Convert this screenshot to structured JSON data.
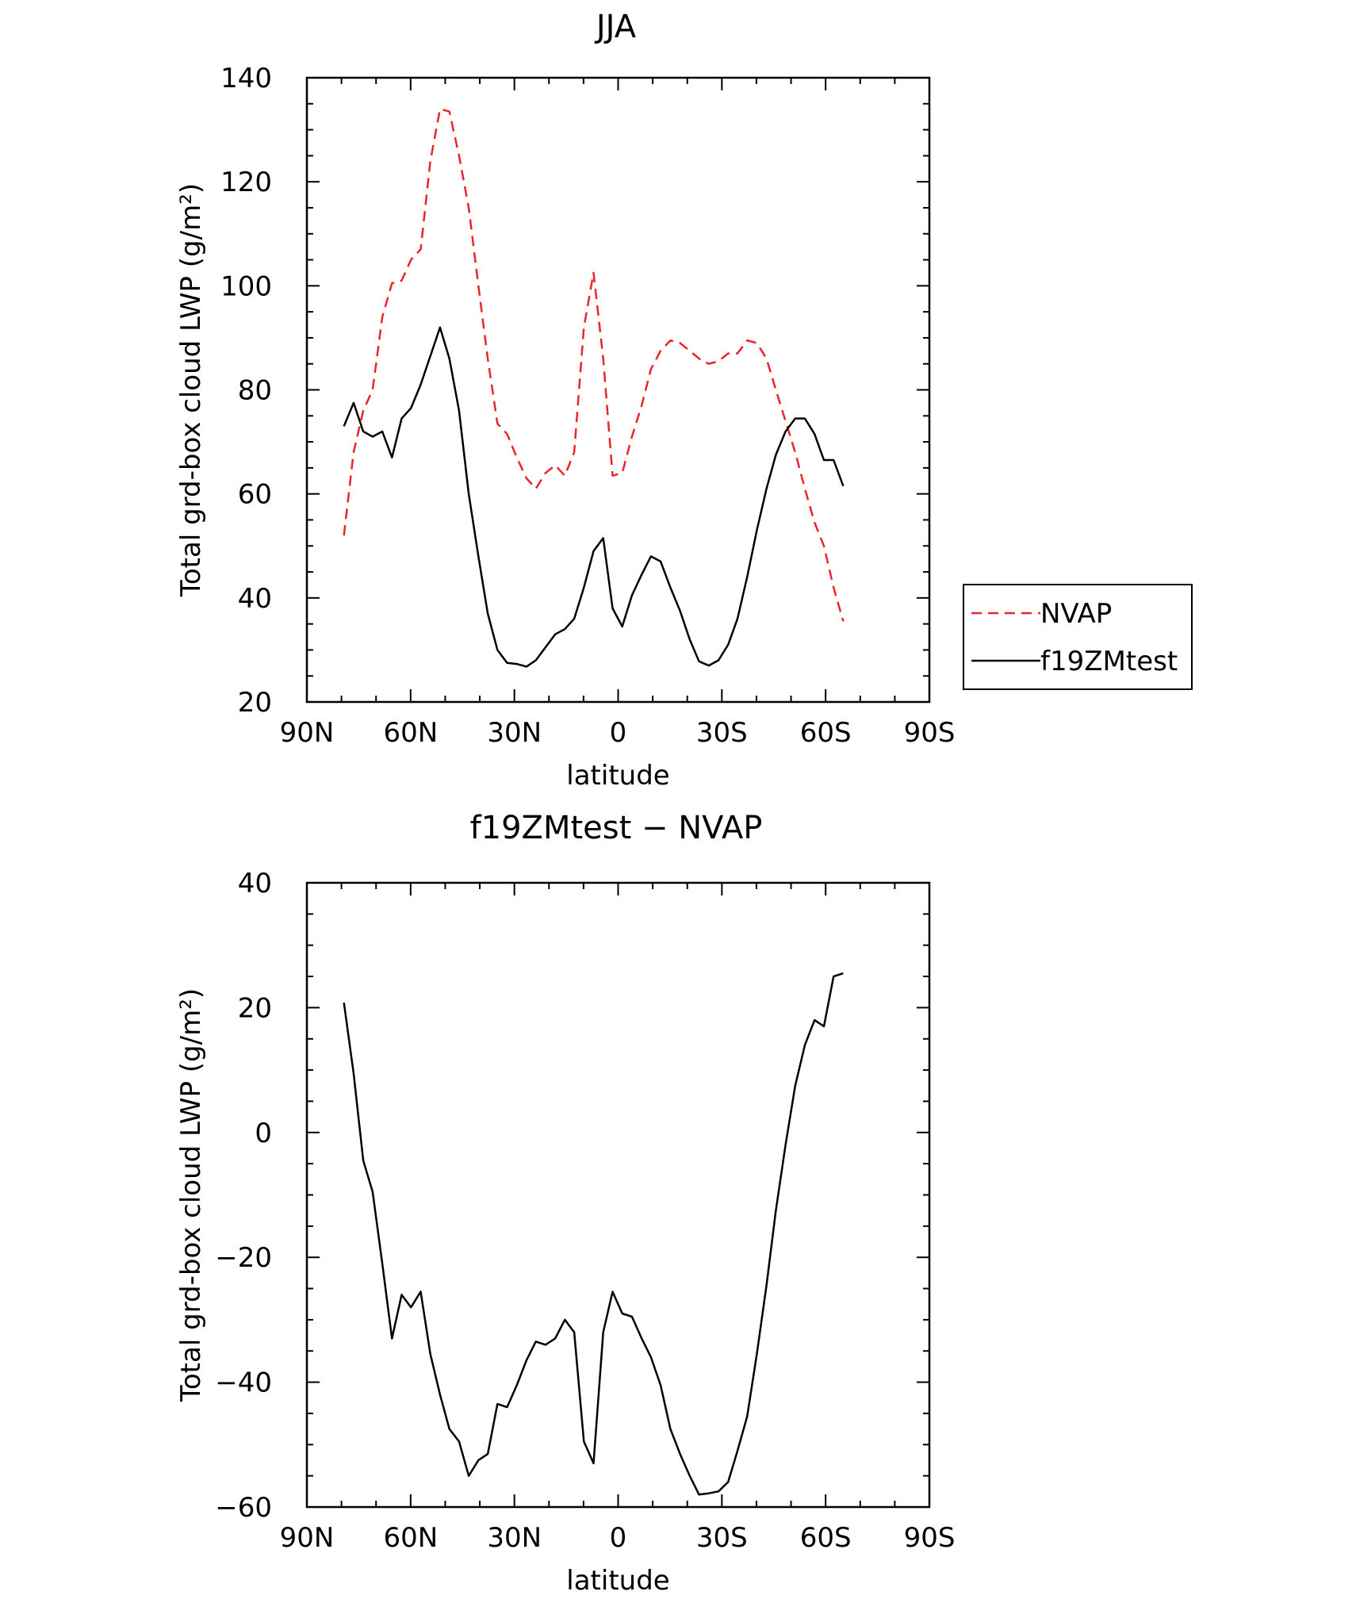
{
  "chart_data": [
    {
      "type": "line",
      "title": "JJA",
      "xlabel": "latitude",
      "ylabel": "Total grd-box cloud LWP (g/m²)",
      "xlim": [
        90,
        -90
      ],
      "ylim": [
        20,
        140
      ],
      "x_ticks": [
        90,
        60,
        30,
        0,
        -30,
        -60,
        -90
      ],
      "x_tick_labels": [
        "90N",
        "60N",
        "30N",
        "0",
        "30S",
        "60S",
        "90S"
      ],
      "y_ticks": [
        20,
        40,
        60,
        80,
        100,
        120,
        140
      ],
      "y_tick_labels": [
        "20",
        "40",
        "60",
        "80",
        "100",
        "120",
        "140"
      ],
      "legend_position": "right",
      "grid": false,
      "series": [
        {
          "name": "NVAP",
          "color": "#e8262a",
          "dash": "dashed",
          "x": [
            79.3,
            76.5,
            73.7,
            71.0,
            68.2,
            65.4,
            62.6,
            59.9,
            57.1,
            54.3,
            51.5,
            48.8,
            46.0,
            43.2,
            40.4,
            37.7,
            34.9,
            32.1,
            29.3,
            26.5,
            23.8,
            21.0,
            18.2,
            15.4,
            12.7,
            9.9,
            7.1,
            4.3,
            1.6,
            -1.2,
            -4.0,
            -6.8,
            -9.5,
            -12.3,
            -15.1,
            -17.9,
            -20.7,
            -23.4,
            -26.2,
            -29.0,
            -31.8,
            -34.5,
            -37.3,
            -40.1,
            -42.9,
            -45.6,
            -48.4,
            -51.2,
            -54.0,
            -56.8,
            -59.5,
            -62.3,
            -65.1
          ],
          "y": [
            52.0,
            68.0,
            76.0,
            80.0,
            94.0,
            100.5,
            101.0,
            105.0,
            107.0,
            124.0,
            134.0,
            133.5,
            125.0,
            115.0,
            100.0,
            86.0,
            73.5,
            71.5,
            67.0,
            63.0,
            61.0,
            64.0,
            65.5,
            63.5,
            68.0,
            92.0,
            102.5,
            86.0,
            63.5,
            64.0,
            71.0,
            77.0,
            84.0,
            87.5,
            89.5,
            89.0,
            87.5,
            86.0,
            85.0,
            85.5,
            87.0,
            87.0,
            89.5,
            89.0,
            86.0,
            80.0,
            74.0,
            68.0,
            61.0,
            54.5,
            50.0,
            42.0,
            35.5
          ]
        },
        {
          "name": "f19ZMtest",
          "color": "#000000",
          "dash": "solid",
          "x": [
            79.3,
            76.5,
            73.7,
            71.0,
            68.2,
            65.4,
            62.6,
            59.9,
            57.1,
            54.3,
            51.5,
            48.8,
            46.0,
            43.2,
            40.4,
            37.7,
            34.9,
            32.1,
            29.3,
            26.5,
            23.8,
            21.0,
            18.2,
            15.4,
            12.7,
            9.9,
            7.1,
            4.3,
            1.6,
            -1.2,
            -4.0,
            -6.8,
            -9.5,
            -12.3,
            -15.1,
            -17.9,
            -20.7,
            -23.4,
            -26.2,
            -29.0,
            -31.8,
            -34.5,
            -37.3,
            -40.1,
            -42.9,
            -45.6,
            -48.4,
            -51.2,
            -54.0,
            -56.8,
            -59.5,
            -62.3,
            -65.1
          ],
          "y": [
            73.0,
            77.5,
            72.0,
            71.0,
            72.0,
            67.0,
            74.5,
            76.5,
            81.0,
            86.5,
            92.0,
            86.0,
            76.0,
            60.0,
            48.0,
            37.0,
            30.0,
            27.5,
            27.3,
            26.8,
            28.0,
            30.5,
            33.0,
            34.0,
            36.0,
            42.0,
            49.0,
            51.5,
            38.0,
            34.5,
            40.5,
            44.5,
            48.0,
            47.0,
            42.0,
            37.5,
            32.0,
            27.8,
            27.0,
            28.0,
            31.0,
            36.0,
            44.0,
            53.0,
            61.0,
            67.5,
            72.0,
            74.5,
            74.5,
            71.5,
            66.5,
            66.5,
            61.5
          ]
        }
      ]
    },
    {
      "type": "line",
      "title": "f19ZMtest − NVAP",
      "xlabel": "latitude",
      "ylabel": "Total grd-box cloud LWP (g/m²)",
      "xlim": [
        90,
        -90
      ],
      "ylim": [
        -60,
        40
      ],
      "x_ticks": [
        90,
        60,
        30,
        0,
        -30,
        -60,
        -90
      ],
      "x_tick_labels": [
        "90N",
        "60N",
        "30N",
        "0",
        "30S",
        "60S",
        "90S"
      ],
      "y_ticks": [
        -60,
        -40,
        -20,
        0,
        20,
        40
      ],
      "y_tick_labels": [
        "−60",
        "−40",
        "−20",
        "0",
        "20",
        "40"
      ],
      "grid": false,
      "series": [
        {
          "color": "#000000",
          "dash": "solid",
          "x": [
            79.3,
            76.5,
            73.7,
            71.0,
            68.2,
            65.4,
            62.6,
            59.9,
            57.1,
            54.3,
            51.5,
            48.8,
            46.0,
            43.2,
            40.4,
            37.7,
            34.9,
            32.1,
            29.3,
            26.5,
            23.8,
            21.0,
            18.2,
            15.4,
            12.7,
            9.9,
            7.1,
            4.3,
            1.6,
            -1.2,
            -4.0,
            -6.8,
            -9.5,
            -12.3,
            -15.1,
            -17.9,
            -20.7,
            -23.4,
            -26.2,
            -29.0,
            -31.8,
            -34.5,
            -37.3,
            -40.1,
            -42.9,
            -45.6,
            -48.4,
            -51.2,
            -54.0,
            -56.8,
            -59.5,
            -62.3,
            -65.1
          ],
          "y": [
            20.8,
            9.5,
            -4.5,
            -9.5,
            -21.0,
            -33.0,
            -26.0,
            -28.0,
            -25.5,
            -35.5,
            -42.0,
            -47.5,
            -49.5,
            -55.0,
            -52.5,
            -51.5,
            -43.5,
            -44.0,
            -40.5,
            -36.5,
            -33.5,
            -34.0,
            -33.0,
            -30.0,
            -32.0,
            -49.5,
            -53.0,
            -32.0,
            -25.5,
            -29.0,
            -29.5,
            -33.0,
            -36.0,
            -40.5,
            -47.5,
            -51.5,
            -55.0,
            -58.0,
            -57.8,
            -57.5,
            -56.0,
            -51.0,
            -45.5,
            -35.5,
            -24.5,
            -12.5,
            -2.0,
            7.5,
            14.0,
            18.0,
            17.0,
            25.0,
            25.5
          ]
        }
      ]
    }
  ]
}
